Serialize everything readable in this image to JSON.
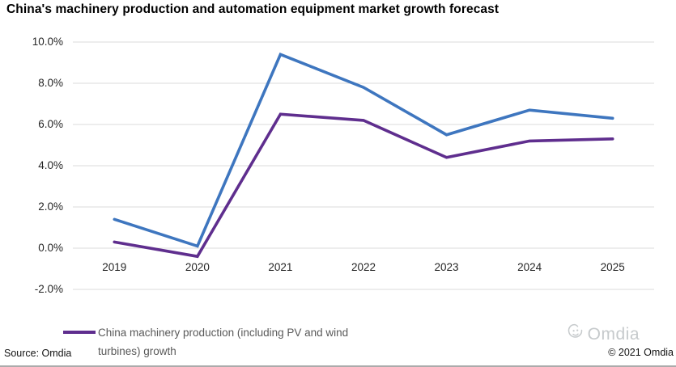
{
  "title": "China's machinery production and automation equipment market growth forecast",
  "chart_data": {
    "type": "line",
    "categories": [
      "2019",
      "2020",
      "2021",
      "2022",
      "2023",
      "2024",
      "2025"
    ],
    "series": [
      {
        "name": "",
        "color": "#3E76BF",
        "values": [
          1.4,
          0.1,
          9.4,
          7.8,
          5.5,
          6.7,
          6.3
        ]
      },
      {
        "name": "China machinery production (including PV and wind turbines) growth",
        "color": "#5F2E8E",
        "values": [
          0.3,
          -0.4,
          6.5,
          6.2,
          4.4,
          5.2,
          5.3
        ]
      }
    ],
    "ylim": [
      -2,
      10
    ],
    "yticks": [
      "10.0%",
      "8.0%",
      "6.0%",
      "4.0%",
      "2.0%",
      "0.0%",
      "-2.0%"
    ],
    "ytick_values": [
      10,
      8,
      6,
      4,
      2,
      0,
      -2
    ],
    "xlabel": "",
    "ylabel": "",
    "grid": "horizontal",
    "grid_color": "#DBDBDB",
    "legend_position": "bottom-left"
  },
  "legend": {
    "label": "China machinery production (including PV and wind turbines) growth",
    "swatch_color": "#5F2E8E"
  },
  "footer": {
    "source": "Source: Omdia",
    "logo_text": "Omdia",
    "copyright": "© 2021 Omdia"
  }
}
